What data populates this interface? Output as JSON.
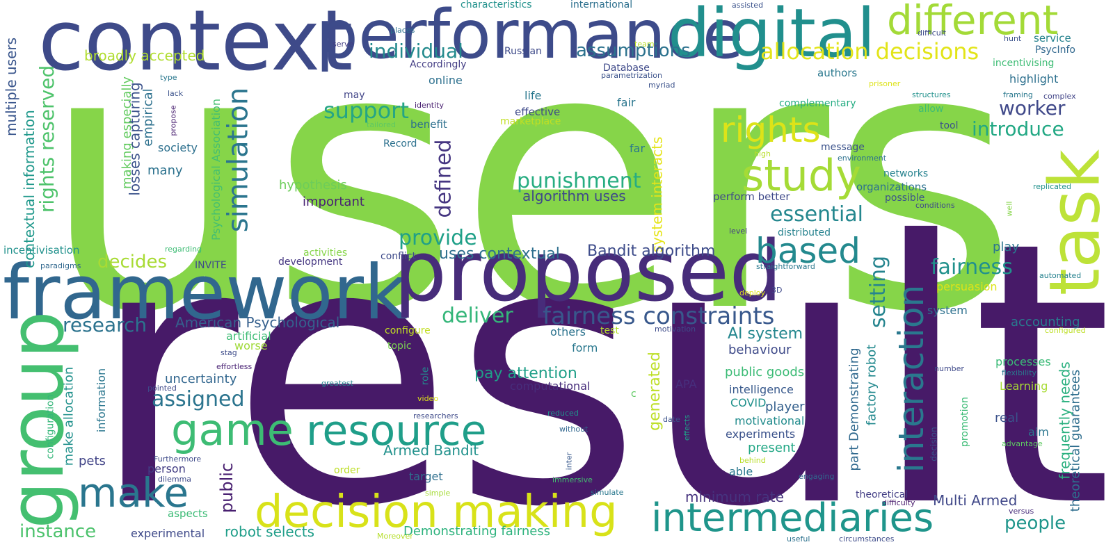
{
  "words": [
    {
      "text": "users",
      "color": "#86d549"
    },
    {
      "text": "result",
      "color": "#471a68"
    },
    {
      "text": "context",
      "color": "#3e4a89"
    },
    {
      "text": "performance",
      "color": "#3d4b8a"
    },
    {
      "text": "digital",
      "color": "#218f8d"
    },
    {
      "text": "different",
      "color": "#a3da37"
    },
    {
      "text": "framework",
      "color": "#31678e"
    },
    {
      "text": "proposed",
      "color": "#472c7a"
    },
    {
      "text": "group",
      "color": "#44bf70"
    },
    {
      "text": "task",
      "color": "#bde238"
    },
    {
      "text": "decision making",
      "color": "#d8e219"
    },
    {
      "text": "intermediaries",
      "color": "#1f958b"
    },
    {
      "text": "resource",
      "color": "#1f9e89"
    },
    {
      "text": "make",
      "color": "#2a768e"
    },
    {
      "text": "game",
      "color": "#3dbc74"
    },
    {
      "text": "interaction",
      "color": "#2a788e"
    },
    {
      "text": "study",
      "color": "#a5db36"
    },
    {
      "text": "based",
      "color": "#23898e"
    },
    {
      "text": "rights",
      "color": "#dde318"
    },
    {
      "text": "simulation",
      "color": "#2b758e"
    },
    {
      "text": "fairness constraints",
      "color": "#38588c"
    },
    {
      "text": "allocation decisions",
      "color": "#e2e418"
    },
    {
      "text": "assumptions",
      "color": "#2c728e"
    },
    {
      "text": "individual",
      "color": "#238a8d"
    },
    {
      "text": "support",
      "color": "#25a585"
    },
    {
      "text": "punishment",
      "color": "#27ad81"
    },
    {
      "text": "essential",
      "color": "#24878e"
    },
    {
      "text": "introduce",
      "color": "#22a884"
    },
    {
      "text": "worker",
      "color": "#3f4889"
    },
    {
      "text": "defined",
      "color": "#453581"
    },
    {
      "text": "provide",
      "color": "#1fa088"
    },
    {
      "text": "deliver",
      "color": "#34b679"
    },
    {
      "text": "research",
      "color": "#2c738e"
    },
    {
      "text": "assigned",
      "color": "#2b748e"
    },
    {
      "text": "setting",
      "color": "#25848e"
    },
    {
      "text": "fairness",
      "color": "#21918c"
    },
    {
      "text": "rights reserved",
      "color": "#4ec36b"
    },
    {
      "text": "decides",
      "color": "#a8db34"
    },
    {
      "text": "instance",
      "color": "#4cc26c"
    },
    {
      "text": "broadly accepted",
      "color": "#b0dd2f"
    },
    {
      "text": "multiple users",
      "color": "#39558c"
    },
    {
      "text": "contextual information",
      "color": "#1f988b"
    },
    {
      "text": "making especially",
      "color": "#62cb5f"
    },
    {
      "text": "losses capturing",
      "color": "#3b528b"
    },
    {
      "text": "empirical",
      "color": "#2d718e"
    },
    {
      "text": "society",
      "color": "#2d708e"
    },
    {
      "text": "many",
      "color": "#2c728e"
    },
    {
      "text": "American Psychological",
      "color": "#35608d"
    },
    {
      "text": "Psychological Association",
      "color": "#44bf70"
    },
    {
      "text": "system interacts",
      "color": "#e5e419"
    },
    {
      "text": "algorithm uses",
      "color": "#3e4989"
    },
    {
      "text": "uses contextual",
      "color": "#2e6f8e"
    },
    {
      "text": "Bandit algorithm",
      "color": "#3e4c8a"
    },
    {
      "text": "hypothesis",
      "color": "#6ccd5a"
    },
    {
      "text": "important",
      "color": "#482173"
    },
    {
      "text": "generated",
      "color": "#bddf26"
    },
    {
      "text": "AI system",
      "color": "#24878e"
    },
    {
      "text": "pay attention",
      "color": "#1f9f88"
    },
    {
      "text": "uncertainty",
      "color": "#31668e"
    },
    {
      "text": "Armed Bandit",
      "color": "#21918c"
    },
    {
      "text": "minimum rate",
      "color": "#46337e"
    },
    {
      "text": "Multi Armed",
      "color": "#3f4788"
    },
    {
      "text": "people",
      "color": "#1f958b"
    },
    {
      "text": "public",
      "color": "#481f70"
    },
    {
      "text": "make allocation",
      "color": "#21918c"
    },
    {
      "text": "robot selects",
      "color": "#1f9e89"
    },
    {
      "text": "Demonstrating fairness",
      "color": "#2db27d"
    },
    {
      "text": "part Demonstrating",
      "color": "#30698e"
    },
    {
      "text": "factory robot",
      "color": "#23898e"
    },
    {
      "text": "frequently needs",
      "color": "#2ab07f"
    },
    {
      "text": "theoretical guarantees",
      "color": "#2e6e8e"
    },
    {
      "text": "public goods",
      "color": "#3bbb75"
    },
    {
      "text": "behaviour",
      "color": "#3e4a89"
    },
    {
      "text": "intelligence",
      "color": "#38598c"
    },
    {
      "text": "player",
      "color": "#34608d"
    },
    {
      "text": "motivational",
      "color": "#228c8d"
    },
    {
      "text": "experiments",
      "color": "#3b528b"
    },
    {
      "text": "present",
      "color": "#22a785"
    },
    {
      "text": "able",
      "color": "#2a788e"
    },
    {
      "text": "COVID",
      "color": "#21918c"
    },
    {
      "text": "real",
      "color": "#3b528b"
    },
    {
      "text": "aim",
      "color": "#2a768e"
    },
    {
      "text": "accounting",
      "color": "#297a8e"
    },
    {
      "text": "processes",
      "color": "#3aba76"
    },
    {
      "text": "Learning",
      "color": "#a8db34"
    },
    {
      "text": "play",
      "color": "#2a768e"
    },
    {
      "text": "persuasion",
      "color": "#dde318"
    },
    {
      "text": "system",
      "color": "#2d708e"
    },
    {
      "text": "computational",
      "color": "#472d7b"
    },
    {
      "text": "APA",
      "color": "#472f7d"
    },
    {
      "text": "experimental",
      "color": "#3e4989"
    },
    {
      "text": "person",
      "color": "#433d84"
    },
    {
      "text": "pets",
      "color": "#414487"
    },
    {
      "text": "information",
      "color": "#2a768e"
    },
    {
      "text": "configuration",
      "color": "#34b679"
    },
    {
      "text": "aspects",
      "color": "#3bbb75"
    },
    {
      "text": "target",
      "color": "#2e6f8e"
    },
    {
      "text": "order",
      "color": "#bddf26"
    },
    {
      "text": "researchers",
      "color": "#3e4a89"
    },
    {
      "text": "reduced",
      "color": "#21918c"
    },
    {
      "text": "without",
      "color": "#31678e"
    },
    {
      "text": "simulate",
      "color": "#2a788e"
    },
    {
      "text": "immersive",
      "color": "#44bf70"
    },
    {
      "text": "simple",
      "color": "#a5db36"
    },
    {
      "text": "Moreover",
      "color": "#b5de2b"
    },
    {
      "text": "useful",
      "color": "#2c718e"
    },
    {
      "text": "circumstances",
      "color": "#3e4c8a"
    },
    {
      "text": "theoretical",
      "color": "#433e85"
    },
    {
      "text": "difficulty",
      "color": "#481a6c"
    },
    {
      "text": "versus",
      "color": "#472d7b"
    },
    {
      "text": "advantage",
      "color": "#5ec962"
    },
    {
      "text": "promotion",
      "color": "#3bbb75"
    },
    {
      "text": "decision",
      "color": "#3b528b"
    },
    {
      "text": "engaging",
      "color": "#31688e"
    },
    {
      "text": "behind",
      "color": "#b8de29"
    },
    {
      "text": "inter",
      "color": "#38598c"
    },
    {
      "text": "effects",
      "color": "#1fa088"
    },
    {
      "text": "date",
      "color": "#3b528b"
    },
    {
      "text": "others",
      "color": "#2c738e"
    },
    {
      "text": "test",
      "color": "#b5de2b"
    },
    {
      "text": "form",
      "color": "#2a788e"
    },
    {
      "text": "motivation",
      "color": "#3e4c8a"
    },
    {
      "text": "artificial",
      "color": "#3dbc74"
    },
    {
      "text": "worse",
      "color": "#a0da39"
    },
    {
      "text": "configure",
      "color": "#c2df23"
    },
    {
      "text": "topic",
      "color": "#7ad151"
    },
    {
      "text": "role",
      "color": "#24878e"
    },
    {
      "text": "video",
      "color": "#dde318"
    },
    {
      "text": "c",
      "color": "#5ec962"
    },
    {
      "text": "greatest",
      "color": "#26828e"
    },
    {
      "text": "pointed",
      "color": "#3e4989"
    },
    {
      "text": "effortless",
      "color": "#482173"
    },
    {
      "text": "stag",
      "color": "#3e4c8a"
    },
    {
      "text": "Furthermore",
      "color": "#3e4a89"
    },
    {
      "text": "dilemma",
      "color": "#3e4989"
    },
    {
      "text": "paradigms",
      "color": "#31688e"
    },
    {
      "text": "INVITE",
      "color": "#3e4a89"
    },
    {
      "text": "incentivisation",
      "color": "#21918c"
    },
    {
      "text": "regarding",
      "color": "#3dbc74"
    },
    {
      "text": "activities",
      "color": "#86d549"
    },
    {
      "text": "development",
      "color": "#453781"
    },
    {
      "text": "conflict",
      "color": "#3e4a89"
    },
    {
      "text": "characteristics",
      "color": "#21918c"
    },
    {
      "text": "international",
      "color": "#2d708e"
    },
    {
      "text": "assisted",
      "color": "#3b528b"
    },
    {
      "text": "team",
      "color": "#b8de29"
    },
    {
      "text": "places",
      "color": "#2c718e"
    },
    {
      "text": "serve",
      "color": "#433d84"
    },
    {
      "text": "Russian",
      "color": "#3e4a89"
    },
    {
      "text": "Accordingly",
      "color": "#433d84"
    },
    {
      "text": "Database",
      "color": "#3e4989"
    },
    {
      "text": "parametrization",
      "color": "#3b528b"
    },
    {
      "text": "myriad",
      "color": "#3b528b"
    },
    {
      "text": "online",
      "color": "#2d708e"
    },
    {
      "text": "may",
      "color": "#414487"
    },
    {
      "text": "identity",
      "color": "#481f70"
    },
    {
      "text": "tailored",
      "color": "#5ec962"
    },
    {
      "text": "life",
      "color": "#2a788e"
    },
    {
      "text": "effective",
      "color": "#3e4989"
    },
    {
      "text": "marketplace",
      "color": "#c2df23"
    },
    {
      "text": "benefit",
      "color": "#2d708e"
    },
    {
      "text": "Record",
      "color": "#2d718e"
    },
    {
      "text": "fair",
      "color": "#2a768e"
    },
    {
      "text": "far",
      "color": "#2a788e"
    },
    {
      "text": "authors",
      "color": "#2a788e"
    },
    {
      "text": "prisoner",
      "color": "#dde318"
    },
    {
      "text": "complementary",
      "color": "#25ac82"
    },
    {
      "text": "allow",
      "color": "#3dbc74"
    },
    {
      "text": "structures",
      "color": "#21918c"
    },
    {
      "text": "tool",
      "color": "#3b528b"
    },
    {
      "text": "message",
      "color": "#3b528b"
    },
    {
      "text": "environment",
      "color": "#2d718e"
    },
    {
      "text": "high",
      "color": "#b8de29"
    },
    {
      "text": "networks",
      "color": "#26828e"
    },
    {
      "text": "organizations",
      "color": "#2d718e"
    },
    {
      "text": "possible",
      "color": "#3b528b"
    },
    {
      "text": "conditions",
      "color": "#3e4989"
    },
    {
      "text": "perform better",
      "color": "#3e4989"
    },
    {
      "text": "level",
      "color": "#433d84"
    },
    {
      "text": "distributed",
      "color": "#26828e"
    },
    {
      "text": "straightforward",
      "color": "#2a788e"
    },
    {
      "text": "deploy",
      "color": "#dde318"
    },
    {
      "text": "3D",
      "color": "#3e4989"
    },
    {
      "text": "PsycInfo",
      "color": "#31688e"
    },
    {
      "text": "service",
      "color": "#26828e"
    },
    {
      "text": "incentivising",
      "color": "#3dbc74"
    },
    {
      "text": "highlight",
      "color": "#2d708e"
    },
    {
      "text": "difficult",
      "color": "#3e4c8a"
    },
    {
      "text": "hunt",
      "color": "#3b528b"
    },
    {
      "text": "framing",
      "color": "#2a788e"
    },
    {
      "text": "complex",
      "color": "#414487"
    },
    {
      "text": "replicated",
      "color": "#21918c"
    },
    {
      "text": "well",
      "color": "#86d549"
    },
    {
      "text": "automated",
      "color": "#26828e"
    },
    {
      "text": "configured",
      "color": "#bddf26"
    },
    {
      "text": "number",
      "color": "#3e4989"
    },
    {
      "text": "flexibility",
      "color": "#2a788e"
    },
    {
      "text": "type",
      "color": "#2a788e"
    },
    {
      "text": "lack",
      "color": "#3b528b"
    },
    {
      "text": "propose",
      "color": "#481f70"
    }
  ]
}
